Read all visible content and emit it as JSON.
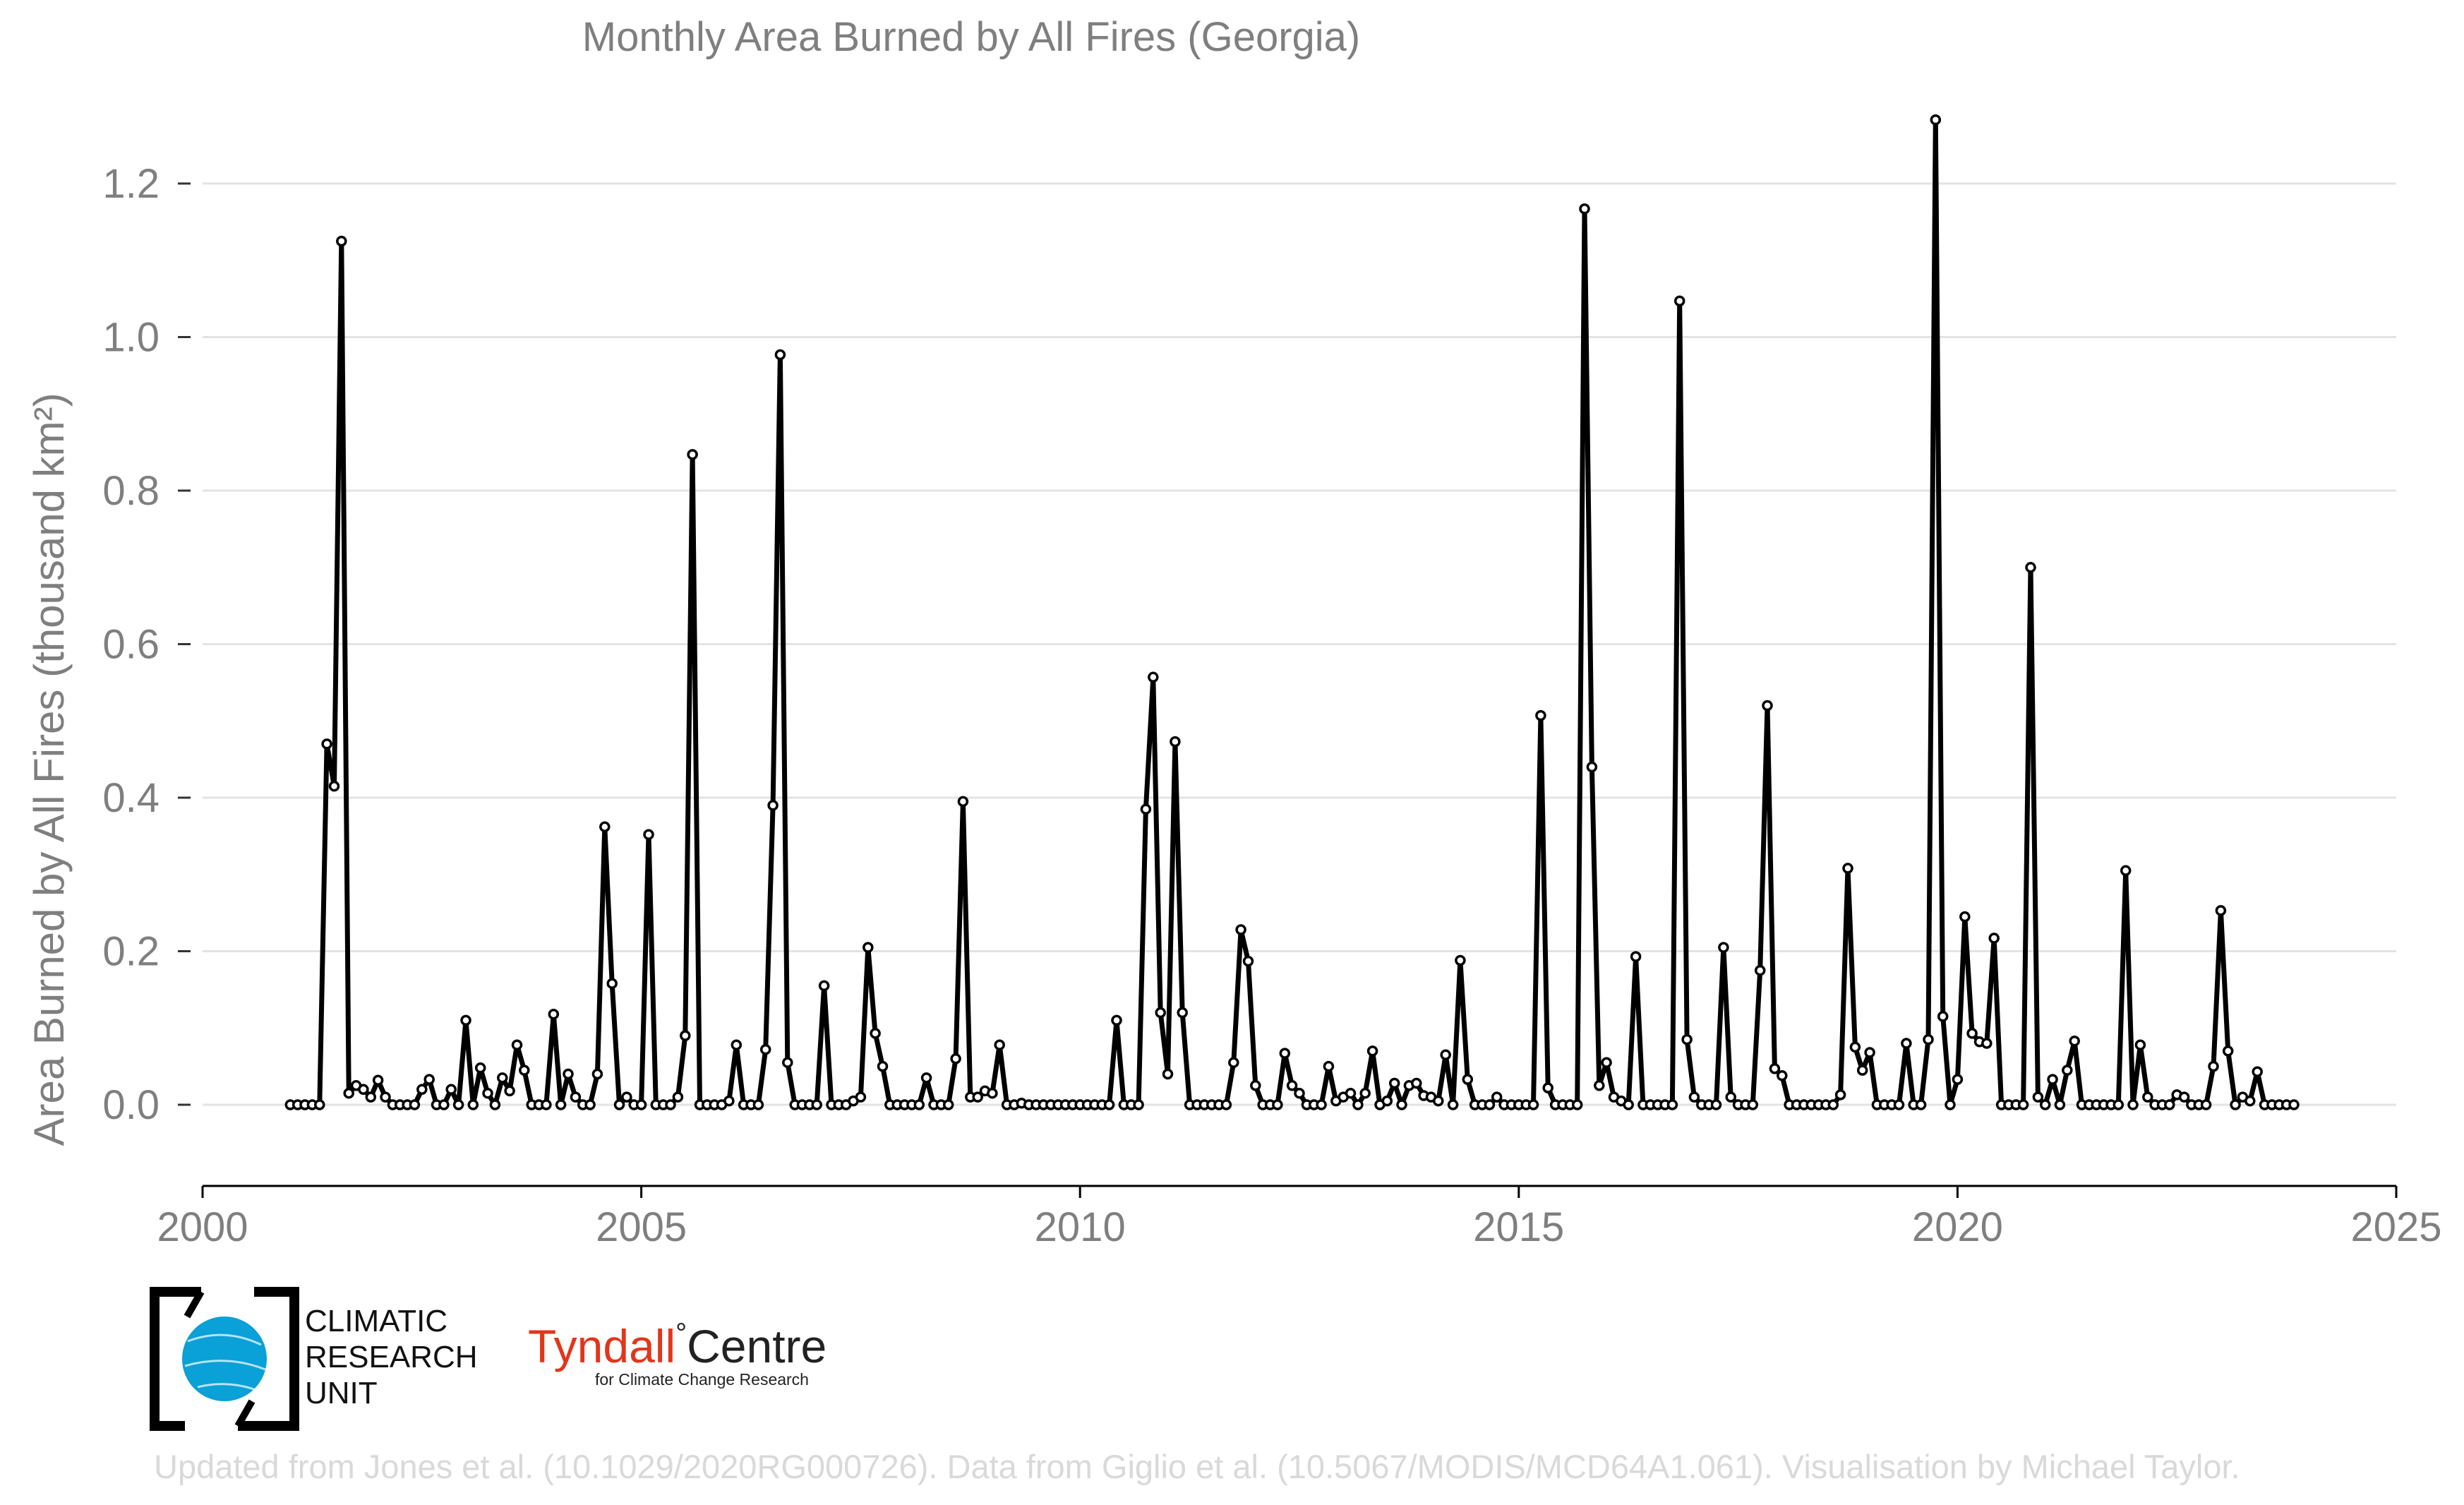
{
  "chart_data": {
    "type": "line",
    "title": "Monthly Area Burned by All Fires (Georgia)",
    "ylabel": "Area Burned by All Fires (thousand km²)",
    "xlabel": "",
    "xlim": [
      2000,
      2025
    ],
    "ylim": [
      -0.1,
      1.3
    ],
    "x_ticks": [
      "2000",
      "2005",
      "2010",
      "2015",
      "2020",
      "2025"
    ],
    "y_ticks": [
      "0.0",
      "0.2",
      "0.4",
      "0.6",
      "0.8",
      "1.0",
      "1.2"
    ],
    "grid": "horizontal",
    "line_color": "#000000",
    "marker": "open-circle",
    "series": [
      {
        "start": "2001-01",
        "frequency": "monthly",
        "values": [
          0,
          0,
          0,
          0,
          0,
          0.47,
          0.415,
          1.125,
          0.015,
          0.025,
          0.02,
          0.01,
          0.032,
          0.01,
          0,
          0,
          0,
          0,
          0.02,
          0.033,
          0,
          0,
          0.02,
          0,
          0.11,
          0,
          0.048,
          0.015,
          0,
          0.035,
          0.018,
          0.078,
          0.045,
          0,
          0,
          0,
          0.118,
          0,
          0.04,
          0.01,
          0,
          0,
          0.04,
          0.362,
          0.158,
          0,
          0.01,
          0,
          0,
          0.352,
          0,
          0,
          0,
          0.01,
          0.09,
          0.847,
          0,
          0,
          0,
          0,
          0.005,
          0.078,
          0,
          0,
          0,
          0.072,
          0.39,
          0.977,
          0.055,
          0,
          0,
          0,
          0,
          0.155,
          0,
          0,
          0,
          0.005,
          0.01,
          0.205,
          0.093,
          0.05,
          0,
          0,
          0,
          0,
          0,
          0.035,
          0,
          0,
          0,
          0.06,
          0.395,
          0.01,
          0.01,
          0.018,
          0.015,
          0.078,
          0,
          0,
          0.002,
          0,
          0,
          0,
          0,
          0,
          0,
          0,
          0,
          0,
          0,
          0,
          0,
          0.11,
          0,
          0,
          0,
          0.385,
          0.557,
          0.12,
          0.04,
          0.473,
          0.12,
          0,
          0,
          0,
          0,
          0,
          0,
          0.055,
          0.228,
          0.187,
          0.025,
          0,
          0,
          0,
          0.067,
          0.025,
          0.015,
          0,
          0,
          0,
          0.05,
          0.005,
          0.01,
          0.015,
          0,
          0.015,
          0.07,
          0,
          0.005,
          0.028,
          0,
          0.025,
          0.028,
          0.012,
          0.01,
          0.005,
          0.065,
          0,
          0.188,
          0.033,
          0,
          0,
          0,
          0.01,
          0,
          0,
          0,
          0,
          0,
          0.507,
          0.022,
          0,
          0,
          0,
          0,
          1.167,
          0.44,
          0.025,
          0.055,
          0.01,
          0.005,
          0,
          0.193,
          0,
          0,
          0,
          0,
          0,
          1.047,
          0.085,
          0.01,
          0,
          0,
          0,
          0.205,
          0.01,
          0,
          0,
          0,
          0.175,
          0.52,
          0.047,
          0.038,
          0,
          0,
          0,
          0,
          0,
          0,
          0,
          0.013,
          0.308,
          0.075,
          0.045,
          0.068,
          0,
          0,
          0,
          0,
          0.08,
          0,
          0,
          0.085,
          1.283,
          0.115,
          0,
          0.033,
          0.245,
          0.093,
          0.082,
          0.08,
          0.217,
          0,
          0,
          0,
          0,
          0.7,
          0.01,
          0,
          0.033,
          0,
          0.045,
          0.083,
          0,
          0,
          0,
          0,
          0,
          0,
          0.305,
          0,
          0.078,
          0.01,
          0,
          0,
          0,
          0.013,
          0.01,
          0,
          0,
          0,
          0.05,
          0.253,
          0.07,
          0,
          0.01,
          0.005,
          0.043,
          0,
          0,
          0,
          0,
          0
        ]
      }
    ]
  },
  "logos": {
    "cru_text": [
      "CLIMATIC",
      "RESEARCH",
      "UNIT"
    ],
    "tyndall_word": "Tyndall",
    "tyndall_degree": "°",
    "tyndall_centre": "Centre",
    "tyndall_sub": "for Climate Change Research",
    "tyndall_red": "#e2361b",
    "cru_blue": "#0aa0d8"
  },
  "credits": "Updated from Jones et al. (10.1029/2020RG000726). Data from Giglio et al. (10.5067/MODIS/MCD64A1.061). Visualisation by Michael Taylor."
}
